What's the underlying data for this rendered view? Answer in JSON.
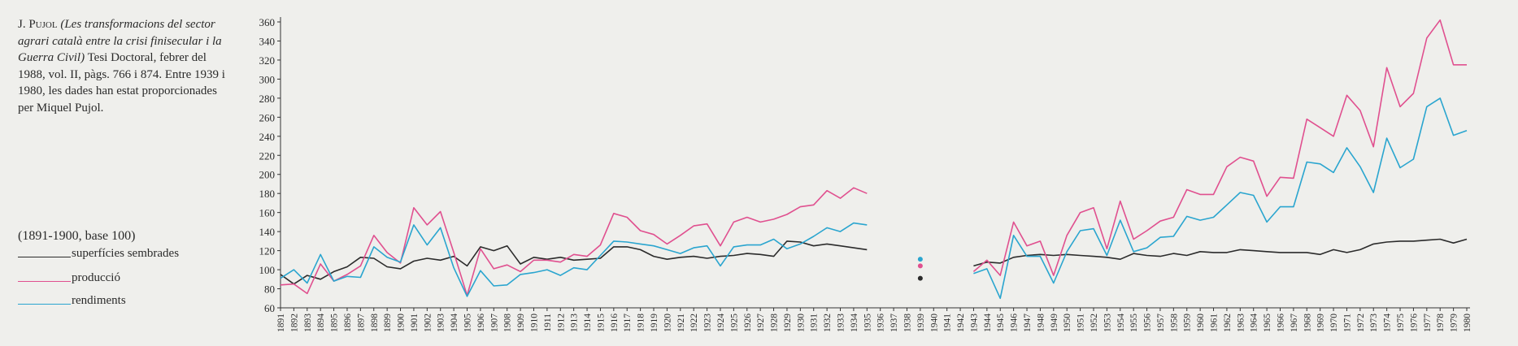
{
  "source_note": {
    "author": "J. Pujol",
    "work": "(Les transformacions del sector agrari català entre la crisi fi­nisecular i la Guerra Civil)",
    "details": "Tesi Doctoral, febrer del 1988, vol. II, pàgs. 766 i 874. Entre 1939 i 1980, les dades han estat proporcionades per Miquel Pujol."
  },
  "base_note": "(1891-1900, base 100)",
  "legend": [
    {
      "label": "superfícies sembrades",
      "color": "#2b2b2b"
    },
    {
      "label": "producció",
      "color": "#e0508f"
    },
    {
      "label": "rendiments",
      "color": "#2aa5cf"
    }
  ],
  "chart_data": {
    "type": "line",
    "title": "",
    "xlabel": "",
    "ylabel": "",
    "xlim": [
      1891,
      1980
    ],
    "ylim": [
      60,
      360
    ],
    "yticks": [
      60,
      80,
      100,
      120,
      140,
      160,
      180,
      200,
      220,
      240,
      260,
      280,
      300,
      320,
      340,
      360
    ],
    "grid": false,
    "x": [
      1891,
      1892,
      1893,
      1894,
      1895,
      1896,
      1897,
      1898,
      1899,
      1900,
      1901,
      1902,
      1903,
      1904,
      1905,
      1906,
      1907,
      1908,
      1909,
      1910,
      1911,
      1912,
      1913,
      1914,
      1915,
      1916,
      1917,
      1918,
      1919,
      1920,
      1921,
      1922,
      1923,
      1924,
      1925,
      1926,
      1927,
      1928,
      1929,
      1930,
      1931,
      1932,
      1933,
      1934,
      1935,
      1936,
      1937,
      1938,
      1939,
      1940,
      1941,
      1942,
      1943,
      1944,
      1945,
      1946,
      1947,
      1948,
      1949,
      1950,
      1951,
      1952,
      1953,
      1954,
      1955,
      1956,
      1957,
      1958,
      1959,
      1960,
      1961,
      1962,
      1963,
      1964,
      1965,
      1966,
      1967,
      1968,
      1969,
      1970,
      1971,
      1972,
      1973,
      1974,
      1975,
      1976,
      1977,
      1978,
      1979,
      1980
    ],
    "series": [
      {
        "name": "superfícies sembrades",
        "color": "#2b2b2b",
        "values": [
          95,
          85,
          94,
          90,
          98,
          103,
          113,
          112,
          103,
          101,
          109,
          112,
          110,
          114,
          104,
          124,
          120,
          125,
          106,
          113,
          111,
          113,
          110,
          111,
          112,
          124,
          124,
          121,
          114,
          111,
          113,
          114,
          112,
          114,
          115,
          117,
          116,
          114,
          130,
          129,
          125,
          127,
          125,
          123,
          121,
          null,
          null,
          null,
          91,
          null,
          null,
          null,
          104,
          108,
          107,
          113,
          115,
          116,
          115,
          116,
          115,
          114,
          113,
          111,
          117,
          115,
          114,
          117,
          115,
          119,
          118,
          118,
          121,
          120,
          119,
          118,
          118,
          118,
          116,
          121,
          118,
          121,
          127,
          129,
          130,
          130,
          131,
          132,
          128,
          132
        ]
      },
      {
        "name": "producció",
        "color": "#e0508f",
        "values": [
          84,
          85,
          75,
          106,
          88,
          95,
          104,
          136,
          118,
          107,
          165,
          147,
          161,
          118,
          73,
          122,
          101,
          105,
          98,
          110,
          110,
          108,
          116,
          114,
          126,
          159,
          155,
          141,
          137,
          127,
          136,
          146,
          148,
          125,
          150,
          155,
          150,
          153,
          158,
          166,
          168,
          183,
          175,
          186,
          180,
          null,
          null,
          null,
          104,
          null,
          null,
          null,
          98,
          110,
          94,
          150,
          125,
          130,
          94,
          136,
          160,
          165,
          122,
          172,
          132,
          141,
          151,
          155,
          184,
          179,
          179,
          208,
          218,
          214,
          177,
          197,
          196,
          258,
          249,
          240,
          283,
          267,
          229,
          312,
          271,
          285,
          343,
          362,
          315,
          315
        ]
      },
      {
        "name": "rendiments",
        "color": "#2aa5cf",
        "values": [
          91,
          100,
          86,
          116,
          88,
          93,
          92,
          124,
          113,
          108,
          147,
          126,
          144,
          102,
          72,
          99,
          83,
          84,
          95,
          97,
          100,
          94,
          102,
          100,
          115,
          130,
          129,
          127,
          125,
          121,
          117,
          123,
          125,
          104,
          124,
          126,
          126,
          132,
          122,
          127,
          135,
          144,
          140,
          149,
          147,
          null,
          null,
          null,
          111,
          null,
          null,
          null,
          96,
          101,
          70,
          136,
          114,
          114,
          86,
          119,
          141,
          143,
          115,
          152,
          119,
          123,
          134,
          135,
          156,
          152,
          155,
          168,
          181,
          178,
          150,
          166,
          166,
          213,
          211,
          202,
          228,
          208,
          181,
          238,
          207,
          216,
          271,
          280,
          241,
          246
        ]
      }
    ]
  }
}
